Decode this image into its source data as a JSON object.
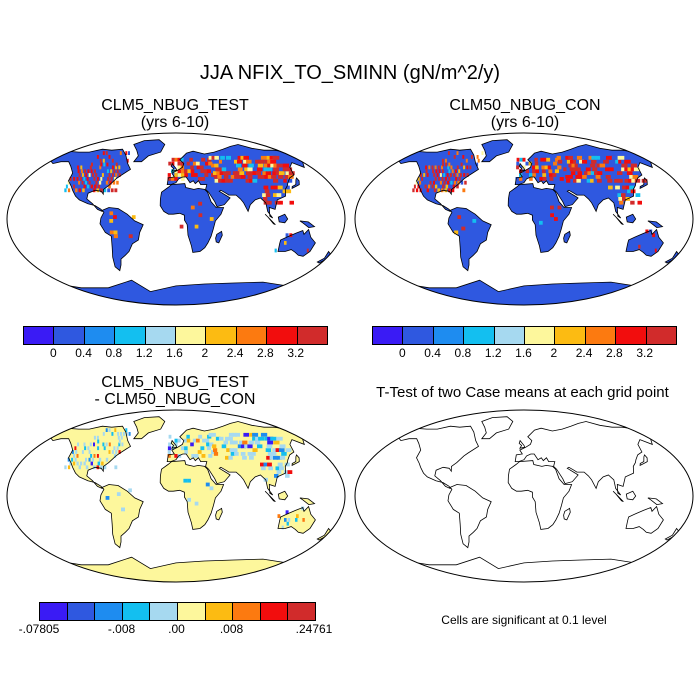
{
  "title": "JJA NFIX_TO_SMINN (gN/m^2/y)",
  "panels": {
    "top_left": {
      "title_line1": "CLM5_NBUG_TEST",
      "title_line2": "(yrs 6-10)"
    },
    "top_right": {
      "title_line1": "CLM50_NBUG_CON",
      "title_line2": "(yrs 6-10)"
    },
    "bottom_left": {
      "title_line1": "CLM5_NBUG_TEST",
      "title_line2": "- CLM50_NBUG_CON"
    },
    "bottom_right": {
      "title_line1": "T-Test of two Case means at each grid point"
    }
  },
  "colorbar_abs": {
    "colors": [
      "#3a1bf5",
      "#2f58e0",
      "#1e8cf0",
      "#13bff0",
      "#a6d9f0",
      "#fdf79c",
      "#fcbb12",
      "#fc7a10",
      "#f20d0d",
      "#d12b2b"
    ],
    "labels": [
      "0",
      "0.4",
      "0.8",
      "1.2",
      "1.6",
      "2",
      "2.4",
      "2.8",
      "3.2"
    ]
  },
  "colorbar_diff": {
    "colors": [
      "#3a1bf5",
      "#2f58e0",
      "#1e8cf0",
      "#13bff0",
      "#a6d9f0",
      "#fdf79c",
      "#fcbb12",
      "#fc7a10",
      "#f20d0d",
      "#d12b2b"
    ],
    "labels": [
      "-.07805",
      "-.008",
      ".00",
      ".008",
      ".24761"
    ]
  },
  "significance_note": "Cells are significant at 0.1 level",
  "colors": {
    "ocean": "#ffffff",
    "land_base_abs": "#2f58e0",
    "land_base_diff": "#fdf79c",
    "coast": "#000000"
  }
}
